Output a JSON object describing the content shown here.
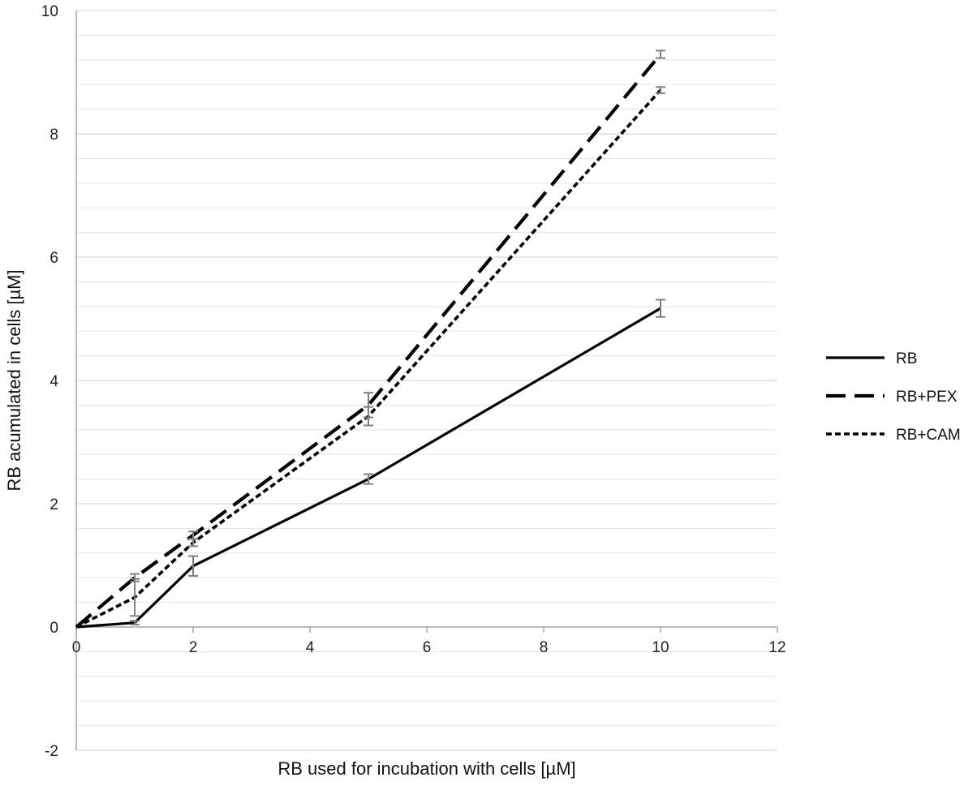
{
  "chart_data": {
    "type": "line",
    "xlabel": "RB used for incubation with cells [µM]",
    "ylabel": "RB acumulated in cells [µM]",
    "xlim": [
      0,
      12
    ],
    "ylim": [
      -2,
      10
    ],
    "x_ticks": [
      0,
      2,
      4,
      6,
      8,
      10,
      12
    ],
    "y_ticks": [
      -2,
      0,
      2,
      4,
      6,
      8,
      10
    ],
    "grid": "horizontal major and minor gridlines",
    "legend_position": "right",
    "x": [
      0,
      1,
      2,
      5,
      10
    ],
    "series": [
      {
        "name": "RB",
        "style": "solid",
        "values": [
          0,
          0.07,
          0.99,
          2.4,
          5.17
        ],
        "errors": [
          0,
          0.03,
          0.16,
          0.08,
          0.14
        ]
      },
      {
        "name": "RB+PEX",
        "style": "long-dash",
        "values": [
          0,
          0.8,
          1.49,
          3.6,
          9.29
        ],
        "errors": [
          0,
          0.06,
          0.06,
          0.2,
          0.06
        ]
      },
      {
        "name": "RB+CAM",
        "style": "short-dash",
        "values": [
          0,
          0.48,
          1.37,
          3.42,
          8.71
        ],
        "errors": [
          0,
          0.3,
          0.06,
          0.15,
          0.05
        ]
      }
    ]
  },
  "colors": {
    "line": "#000000",
    "error_bar": "#7f7f7f",
    "grid": "#d9d9d9",
    "axis": "#a6a6a6"
  }
}
